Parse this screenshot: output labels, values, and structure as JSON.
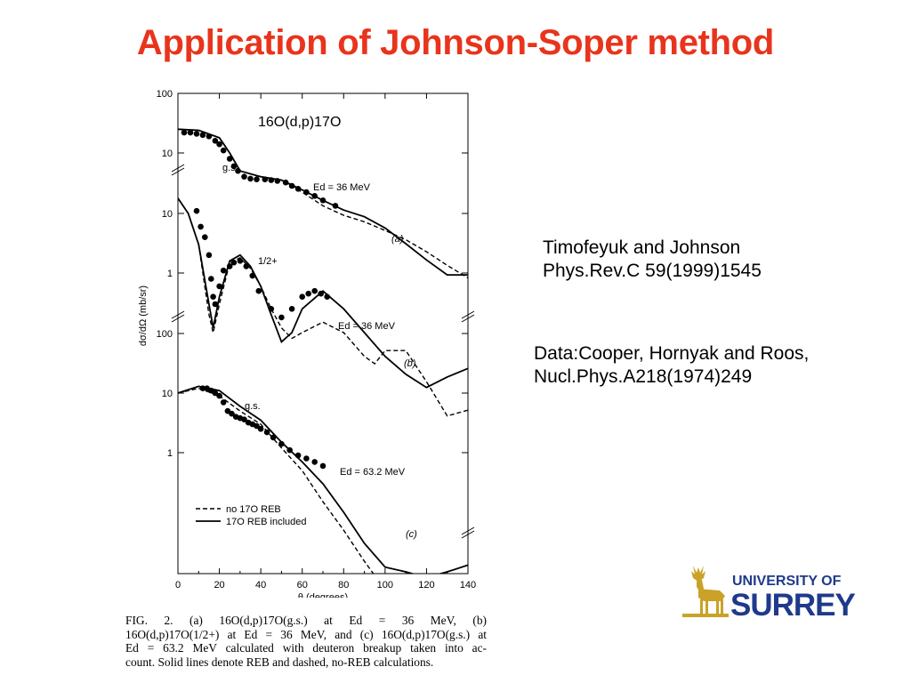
{
  "title": "Application of Johnson-Soper method",
  "references": {
    "theory_line1": "Timofeyuk and Johnson",
    "theory_line2": "Phys.Rev.C 59(1999)1545",
    "data_line1": "Data:Cooper, Hornyak and Roos,",
    "data_line2": "Nucl.Phys.A218(1974)249"
  },
  "figure": {
    "reaction_label": "16O(d,p)17O",
    "ylabel": "dσ/dΩ (mb/sr)",
    "xlabel": "θ (degrees)",
    "x_ticks": [
      "0",
      "20",
      "40",
      "60",
      "80",
      "100",
      "120",
      "140"
    ],
    "panel_a": {
      "y_ticks": [
        "100",
        "10"
      ],
      "state": "g.s.",
      "energy": "Ed = 36 MeV",
      "tag": "(a)"
    },
    "panel_b": {
      "y_ticks": [
        "10",
        "1"
      ],
      "state": "1/2+",
      "energy": "Ed = 36 MeV",
      "tag": "(b)"
    },
    "panel_c": {
      "y_ticks": [
        "100",
        "10",
        "1"
      ],
      "state": "g.s.",
      "energy": "Ed = 63.2 MeV",
      "tag": "(c)"
    },
    "legend": [
      {
        "style": "dashed",
        "label": "no 17O REB"
      },
      {
        "style": "solid",
        "label": "17O REB included"
      }
    ],
    "caption_lines": [
      "FIG.   2.   (a)   16O(d,p)17O(g.s.)   at   Ed = 36  MeV,   (b)",
      "16O(d,p)17O(1/2+) at Ed = 36  MeV, and (c)  16O(d,p)17O(g.s.) at",
      "Ed = 63.2  MeV calculated with deuteron breakup taken into ac-",
      "count. Solid lines denote REB and dashed, no-REB calculations."
    ]
  },
  "chart_data": {
    "type": "scatter",
    "title": "16O(d,p)17O",
    "xlabel": "θ (degrees)",
    "ylabel": "dσ/dΩ (mb/sr)",
    "xlim": [
      0,
      140
    ],
    "log_y": true,
    "panels": [
      {
        "name": "(a) g.s., Ed = 36 MeV",
        "series": [
          {
            "name": "no 17O REB",
            "style": "dashed",
            "x": [
              0,
              10,
              20,
              25,
              30,
              40,
              50,
              60,
              70,
              80,
              90,
              100,
              110,
              120,
              130,
              140
            ],
            "y": [
              25,
              24,
              18,
              10,
              5,
              4,
              3.5,
              2.2,
              1.3,
              0.9,
              0.7,
              0.5,
              0.35,
              0.22,
              0.13,
              0.08
            ]
          },
          {
            "name": "17O REB included",
            "style": "solid",
            "x": [
              0,
              10,
              20,
              25,
              30,
              40,
              50,
              60,
              70,
              80,
              90,
              100,
              110,
              120,
              130,
              140
            ],
            "y": [
              25,
              24,
              18,
              10,
              5,
              4,
              3.5,
              2.4,
              1.6,
              1.1,
              0.85,
              0.55,
              0.3,
              0.16,
              0.09,
              0.09
            ]
          },
          {
            "name": "data",
            "x": [
              3,
              6,
              9,
              12,
              15,
              18,
              20,
              22,
              25,
              27,
              29,
              32,
              35,
              38,
              42,
              45,
              48,
              52,
              55,
              58,
              62,
              66,
              70,
              76
            ],
            "y": [
              22,
              22,
              21,
              20,
              19,
              16,
              14,
              11,
              8,
              6,
              5,
              4,
              3.7,
              3.6,
              3.6,
              3.5,
              3.4,
              3.2,
              2.8,
              2.5,
              2.2,
              1.9,
              1.6,
              1.3
            ]
          }
        ]
      },
      {
        "name": "(b) 1/2+, Ed = 36 MeV",
        "series": [
          {
            "name": "no 17O REB",
            "style": "dashed",
            "x": [
              0,
              5,
              10,
              15,
              17,
              20,
              25,
              30,
              35,
              40,
              45,
              50,
              55,
              60,
              70,
              80,
              90,
              95,
              100,
              110,
              120,
              130,
              140
            ],
            "y": [
              18,
              10,
              3,
              0.2,
              0.1,
              0.3,
              1.5,
              1.8,
              1.2,
              0.6,
              0.25,
              0.12,
              0.08,
              0.1,
              0.15,
              0.1,
              0.04,
              0.03,
              0.05,
              0.05,
              0.015,
              0.004,
              0.005
            ]
          },
          {
            "name": "17O REB included",
            "style": "solid",
            "x": [
              0,
              5,
              10,
              15,
              17,
              20,
              25,
              30,
              35,
              40,
              45,
              50,
              55,
              60,
              70,
              80,
              90,
              100,
              110,
              120,
              130,
              140
            ],
            "y": [
              18,
              10,
              3,
              0.3,
              0.12,
              0.4,
              1.6,
              2,
              1.3,
              0.6,
              0.2,
              0.07,
              0.1,
              0.25,
              0.5,
              0.25,
              0.1,
              0.04,
              0.02,
              0.012,
              0.018,
              0.025
            ]
          },
          {
            "name": "data",
            "x": [
              9,
              11,
              13,
              15,
              16,
              17,
              18,
              20,
              22,
              25,
              27,
              30,
              33,
              36,
              39,
              45,
              50,
              55,
              60,
              63,
              66,
              69,
              72
            ],
            "y": [
              11,
              6,
              4,
              2,
              0.8,
              0.4,
              0.3,
              0.6,
              1.1,
              1.3,
              1.5,
              1.6,
              1.3,
              0.9,
              0.5,
              0.25,
              0.18,
              0.25,
              0.4,
              0.45,
              0.5,
              0.45,
              0.4
            ]
          }
        ]
      },
      {
        "name": "(c) g.s., Ed = 63.2 MeV",
        "series": [
          {
            "name": "no 17O REB",
            "style": "dashed",
            "x": [
              0,
              10,
              20,
              30,
              40,
              50,
              60,
              70,
              80,
              90,
              100,
              110,
              120,
              130,
              140
            ],
            "y": [
              10,
              12,
              9,
              5,
              3,
              1.2,
              0.5,
              0.15,
              0.05,
              0.015,
              0.005,
              0.002,
              0.001,
              0.0005,
              0.0003
            ]
          },
          {
            "name": "17O REB included",
            "style": "solid",
            "x": [
              0,
              10,
              20,
              30,
              40,
              50,
              60,
              70,
              80,
              90,
              100,
              110,
              120,
              130,
              140
            ],
            "y": [
              10,
              13,
              11,
              6,
              3.5,
              1.5,
              0.7,
              0.3,
              0.1,
              0.03,
              0.012,
              0.01,
              0.008,
              0.01,
              0.013
            ]
          },
          {
            "name": "data",
            "x": [
              12,
              14,
              16,
              18,
              20,
              22,
              24,
              26,
              28,
              30,
              32,
              34,
              36,
              38,
              40,
              43,
              46,
              50,
              54,
              58,
              62,
              66,
              70
            ],
            "y": [
              12,
              12,
              11,
              10,
              9,
              7,
              5,
              4.5,
              4,
              3.8,
              3.6,
              3.2,
              3,
              2.8,
              2.5,
              2.2,
              1.8,
              1.4,
              1.1,
              0.9,
              0.8,
              0.7,
              0.6
            ]
          }
        ]
      }
    ]
  },
  "colors": {
    "title": "#e8341c",
    "logo_gold": "#c9a227",
    "logo_blue": "#1f3a8a"
  },
  "logo": {
    "line1": "UNIVERSITY OF",
    "line2": "SURREY",
    "icon": "stag-icon"
  }
}
